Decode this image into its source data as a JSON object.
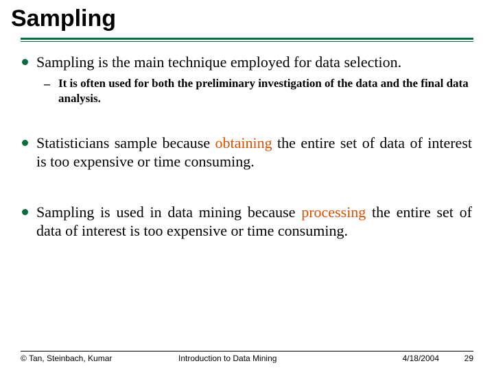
{
  "title": "Sampling",
  "accent_color": "#0a6b3e",
  "highlight_color": "#d94f00",
  "bullets": {
    "b1": {
      "text": "Sampling is the main technique employed for data selection.",
      "sub": "It is often used for both the preliminary investigation of the data and the final data analysis."
    },
    "b2": {
      "pre": "Statisticians sample because ",
      "hl": "obtaining",
      "post": " the entire set of data of interest is too expensive or time consuming."
    },
    "b3": {
      "pre": "Sampling is used in data mining because ",
      "hl": "processing",
      "post": " the entire set of data of interest is too expensive or time consuming."
    }
  },
  "footer": {
    "copyright": "© Tan, Steinbach, Kumar",
    "course": "Introduction to Data Mining",
    "date": "4/18/2004",
    "page": "29"
  }
}
